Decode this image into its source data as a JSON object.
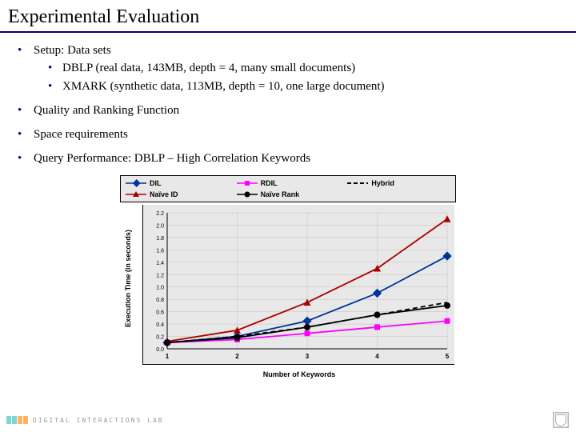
{
  "title": "Experimental Evaluation",
  "bullets": {
    "setup": "Setup: Data sets",
    "setup_sub1": "DBLP (real data, 143MB, depth = 4, many small documents)",
    "setup_sub2": "XMARK (synthetic data, 113MB, depth = 10, one large document)",
    "quality": "Quality and Ranking Function",
    "space": "Space requirements",
    "query": "Query Performance: DBLP – High Correlation Keywords"
  },
  "chart": {
    "type": "line",
    "xlabel": "Number of Keywords",
    "ylabel": "Execution Time (in seconds)",
    "xlim": [
      1,
      5
    ],
    "ylim": [
      0,
      2.2
    ],
    "ytick_step": 0.2,
    "xtick_step": 1,
    "background_color": "#e8e8e8",
    "grid_color": "#bfbfbf",
    "legend": [
      {
        "label": "DIL",
        "color": "#003399",
        "marker": "diamond",
        "dash": "solid"
      },
      {
        "label": "RDIL",
        "color": "#ff00ff",
        "marker": "square",
        "dash": "solid"
      },
      {
        "label": "Hybrid",
        "color": "#000000",
        "marker": "dash",
        "dash": "dash"
      },
      {
        "label": "Naïve ID",
        "color": "#aa0000",
        "marker": "triangle",
        "dash": "solid"
      },
      {
        "label": "Naïve Rank",
        "color": "#000000",
        "marker": "circle",
        "dash": "solid"
      }
    ],
    "series": {
      "DIL": {
        "color": "#003399",
        "marker": "diamond",
        "dash": "solid",
        "y": [
          0.1,
          0.2,
          0.45,
          0.9,
          1.5
        ]
      },
      "RDIL": {
        "color": "#ff00ff",
        "marker": "square",
        "dash": "solid",
        "y": [
          0.1,
          0.15,
          0.25,
          0.35,
          0.45
        ]
      },
      "Hybrid": {
        "color": "#000000",
        "marker": "none",
        "dash": "dash",
        "y": [
          0.1,
          0.2,
          0.35,
          0.55,
          0.75
        ]
      },
      "NaiveID": {
        "color": "#aa0000",
        "marker": "triangle",
        "dash": "solid",
        "y": [
          0.12,
          0.3,
          0.75,
          1.3,
          2.1
        ]
      },
      "NaiveRank": {
        "color": "#000000",
        "marker": "circle",
        "dash": "solid",
        "y": [
          0.1,
          0.18,
          0.35,
          0.55,
          0.7
        ]
      }
    },
    "x": [
      1,
      2,
      3,
      4,
      5
    ]
  },
  "footer_text": "DIGITAL INTERACTIONS LAB",
  "footer_logo_colors": [
    "#7fd4d4",
    "#7fd4d4",
    "#ffb366",
    "#ffb366"
  ]
}
